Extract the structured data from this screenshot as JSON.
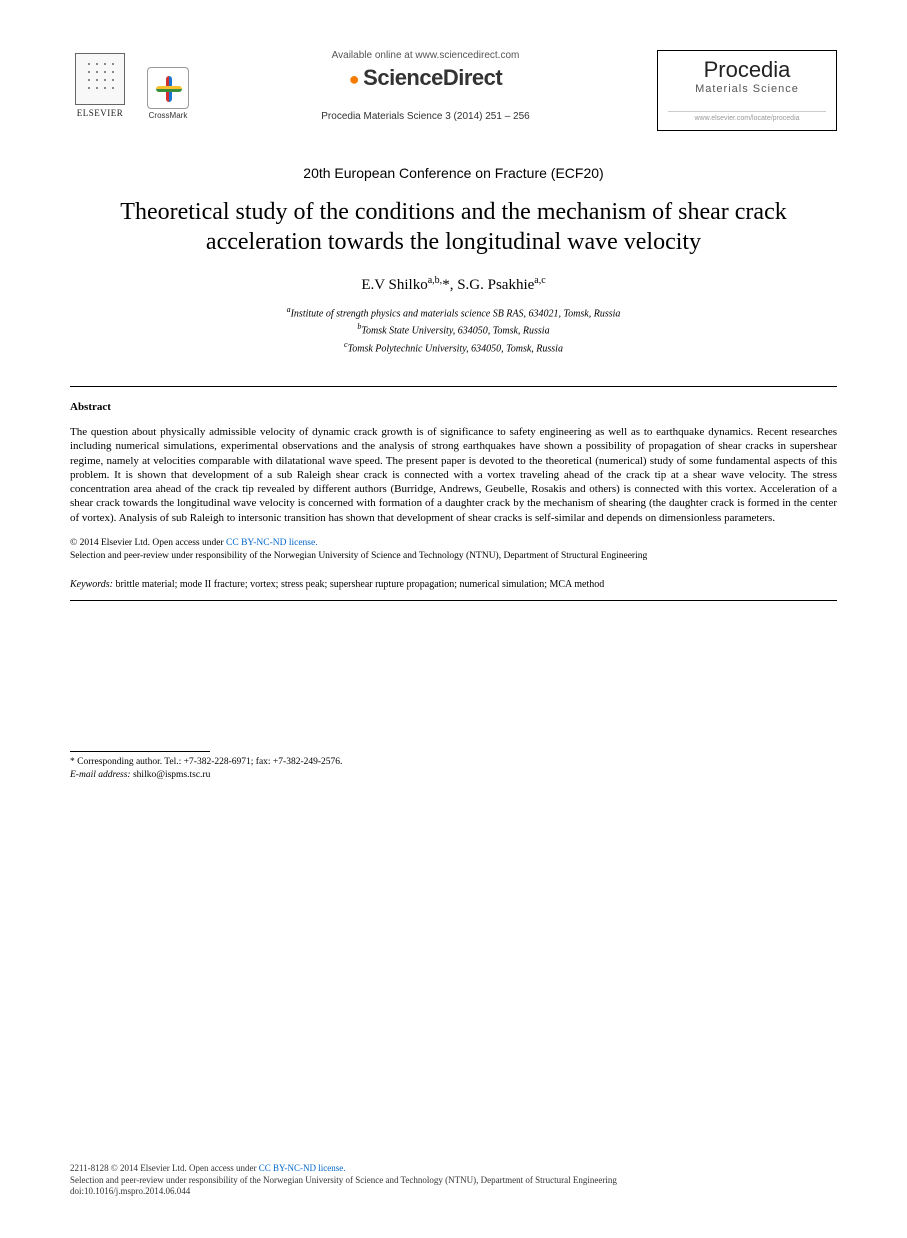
{
  "header": {
    "elsevier_label": "ELSEVIER",
    "crossmark_label": "CrossMark",
    "available_text": "Available online at www.sciencedirect.com",
    "sciencedirect": "ScienceDirect",
    "citation": "Procedia Materials Science 3 (2014) 251 – 256",
    "procedia_title": "Procedia",
    "procedia_sub": "Materials Science",
    "procedia_url": "www.elsevier.com/locate/procedia"
  },
  "conference": "20th European Conference on Fracture (ECF20)",
  "title": "Theoretical study of the conditions and the mechanism of shear crack acceleration towards the longitudinal wave velocity",
  "authors": {
    "a1_name": "E.V Shilko",
    "a1_sup": "a,b,",
    "a1_star": "*",
    "a2_name": ", S.G. Psakhie",
    "a2_sup": "a,c"
  },
  "affiliations": {
    "a": "Institute of strength physics and materials science SB RAS, 634021, Tomsk, Russia",
    "b": "Tomsk State University, 634050, Tomsk, Russia",
    "c": "Tomsk Polytechnic University, 634050, Tomsk, Russia"
  },
  "abstract_heading": "Abstract",
  "abstract_text": "The question about physically admissible velocity of dynamic crack growth is of significance to safety engineering as well as to earthquake dynamics. Recent researches including numerical simulations, experimental observations and the analysis of strong earthquakes have shown a possibility of propagation of shear cracks in supershear regime, namely at velocities comparable with dilatational wave speed. The present paper is devoted to the theoretical (numerical) study of some fundamental aspects of this problem. It is shown that development of a sub Raleigh shear crack is connected with a vortex traveling ahead of the crack tip at a shear wave velocity. The stress concentration area ahead of the crack tip revealed by different authors (Burridge, Andrews, Geubelle, Rosakis and others) is connected with this vortex. Acceleration of a shear crack towards the longitudinal wave velocity is concerned with formation of a daughter crack by the mechanism of shearing (the daughter crack is formed in the center of vortex). Analysis of sub Raleigh to intersonic transition has shown that development of shear cracks is self-similar and depends on dimensionless parameters.",
  "copyright": {
    "line1_a": "© 2014 Elsevier Ltd. ",
    "line1_b": "Open access under ",
    "license_text": "CC BY-NC-ND license.",
    "line2": "Selection and peer-review under responsibility of the Norwegian University of Science and Technology (NTNU), Department of Structural Engineering"
  },
  "keywords": {
    "label": "Keywords:",
    "text": " brittle material; mode II fracture; vortex; stress peak; supershear rupture propagation; numerical simulation; MCA method"
  },
  "corresponding": {
    "line1": "* Corresponding author. Tel.: +7-382-228-6971; fax: +7-382-249-2576.",
    "email_label": "E-mail address:",
    "email": " shilko@ispms.tsc.ru"
  },
  "footer": {
    "issn_line_a": "2211-8128 © 2014 Elsevier Ltd. ",
    "issn_line_b": "Open access under ",
    "license_text": "CC BY-NC-ND license.",
    "peer_review": "Selection and peer-review under responsibility of the Norwegian University of Science and Technology (NTNU), Department of Structural Engineering",
    "doi": "doi:10.1016/j.mspro.2014.06.044"
  }
}
